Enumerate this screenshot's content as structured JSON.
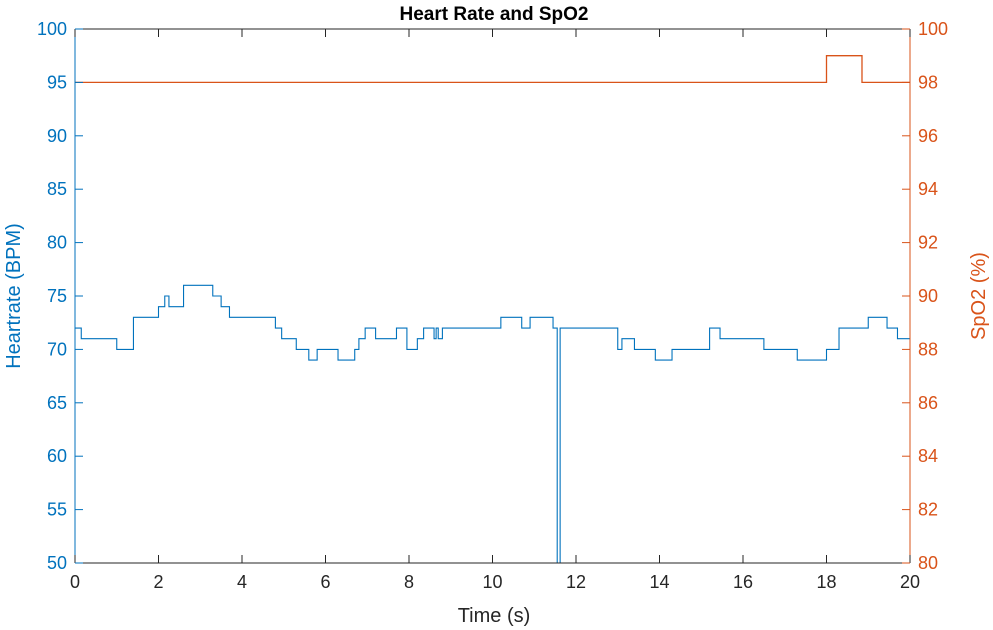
{
  "chart_data": {
    "type": "line",
    "title": "Heart Rate and SpO2",
    "xlabel": "Time (s)",
    "xlim": [
      0,
      20
    ],
    "x_ticks": [
      "0",
      "2",
      "4",
      "6",
      "8",
      "10",
      "12",
      "14",
      "16",
      "18",
      "20"
    ],
    "y_left": {
      "label": "Heartrate (BPM)",
      "lim": [
        50,
        100
      ],
      "ticks": [
        "50",
        "55",
        "60",
        "65",
        "70",
        "75",
        "80",
        "85",
        "90",
        "95",
        "100"
      ],
      "color": "#0072BD"
    },
    "y_right": {
      "label": "SpO2 (%)",
      "lim": [
        80,
        100
      ],
      "ticks": [
        "80",
        "82",
        "84",
        "86",
        "88",
        "90",
        "92",
        "94",
        "96",
        "98",
        "100"
      ],
      "color": "#D95319"
    },
    "grid": false,
    "series": [
      {
        "axis": "left",
        "color": "#0072BD",
        "x": [
          0,
          0.15,
          1.0,
          1.4,
          2.0,
          2.15,
          2.25,
          2.35,
          2.6,
          3.3,
          3.5,
          3.7,
          4.2,
          4.8,
          4.95,
          5.3,
          5.6,
          5.8,
          6.3,
          6.7,
          6.8,
          6.95,
          7.2,
          7.7,
          7.95,
          8.2,
          8.35,
          8.6,
          8.65,
          8.7,
          8.8,
          8.9,
          9.3,
          9.6,
          9.7,
          10.2,
          10.7,
          10.9,
          11.45,
          11.55,
          11.62,
          13.0,
          13.1,
          13.4,
          13.55,
          13.9,
          14.3,
          15.2,
          15.45,
          16.0,
          16.5,
          17.3,
          18.0,
          18.3,
          18.6,
          19.0,
          19.45,
          19.7
        ],
        "values": [
          72,
          71,
          70,
          73,
          74,
          75,
          74,
          74,
          76,
          75,
          74,
          73,
          73,
          72,
          71,
          70,
          69,
          70,
          69,
          70,
          71,
          72,
          71,
          72,
          70,
          71,
          72,
          71,
          72,
          71,
          72,
          72,
          72,
          72,
          72,
          73,
          72,
          73,
          72,
          50,
          72,
          70,
          71,
          70,
          70,
          69,
          70,
          72,
          71,
          71,
          70,
          69,
          70,
          72,
          72,
          73,
          72,
          71
        ],
        "x_end": 20
      },
      {
        "axis": "right",
        "color": "#D95319",
        "x": [
          0,
          18.0,
          18.85
        ],
        "values": [
          98,
          99,
          98
        ],
        "x_end": 20
      }
    ]
  }
}
